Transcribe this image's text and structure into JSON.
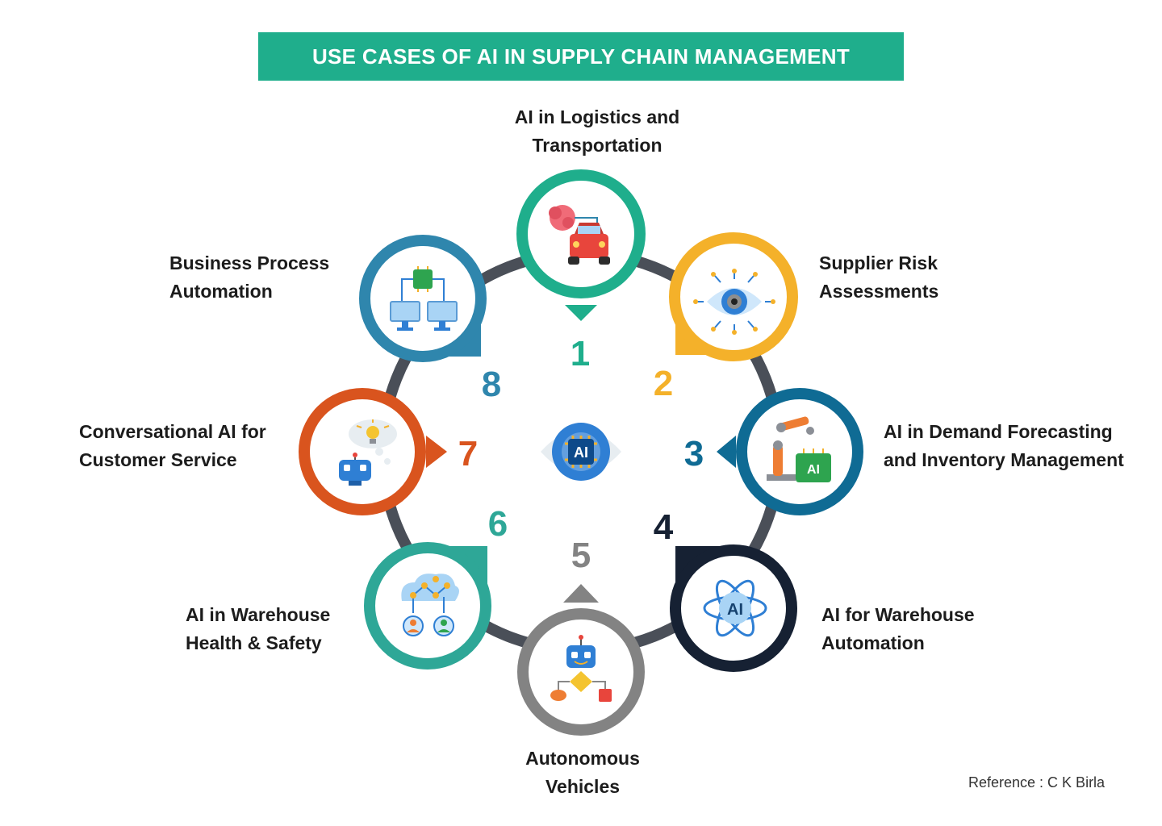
{
  "title": "USE CASES OF AI IN SUPPLY CHAIN MANAGEMENT",
  "colors": {
    "title_bar": "#1fae8c",
    "ring": "#4a4f58",
    "item1": "#1fae8c",
    "item2": "#f4b12a",
    "item3": "#0f6b94",
    "item4": "#162133",
    "item5": "#838383",
    "item6": "#2ea797",
    "item7": "#d9541e",
    "item8": "#2f86ad"
  },
  "center_icon": {
    "name": "ai-eye-icon",
    "label": "AI"
  },
  "items": [
    {
      "number": "1",
      "line1": "AI in Logistics and",
      "line2": "Transportation",
      "icon": "brain-car-icon"
    },
    {
      "number": "2",
      "line1": "Supplier Risk",
      "line2": "Assessments",
      "icon": "circuit-eye-icon"
    },
    {
      "number": "3",
      "line1": "AI in Demand Forecasting",
      "line2": "and Inventory Management",
      "icon": "robot-arm-ai-icon"
    },
    {
      "number": "4",
      "line1": "AI for Warehouse",
      "line2": "Automation",
      "icon": "ai-atom-icon"
    },
    {
      "number": "5",
      "line1": "Autonomous",
      "line2": "Vehicles",
      "icon": "robot-flowchart-icon"
    },
    {
      "number": "6",
      "line1": "AI in Warehouse",
      "line2": "Health & Safety",
      "icon": "network-people-icon"
    },
    {
      "number": "7",
      "line1": "Conversational AI for",
      "line2": "Customer Service",
      "icon": "chatbot-idea-icon"
    },
    {
      "number": "8",
      "line1": "Business Process",
      "line2": "Automation",
      "icon": "chip-monitors-icon"
    }
  ],
  "reference": "Reference : C K Birla"
}
